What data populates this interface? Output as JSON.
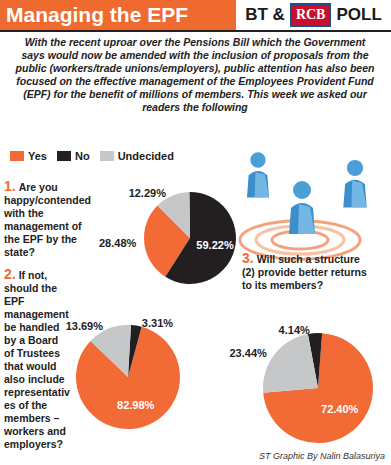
{
  "header": {
    "title": "Managing the EPF",
    "poll": [
      "BT &",
      "RCB",
      "POLL"
    ]
  },
  "intro": "With the recent uproar over the Pensions Bill which the Government says would now be amended with the inclusion of proposals from the public (workers/trade unions/employers), public attention has also been focused on the effective management of the Employees Provident Fund (EPF) for the benefit of millions of members. This week we asked our readers the following",
  "key": [
    {
      "label": "Yes",
      "color": "#f26a35"
    },
    {
      "label": "No",
      "color": "#231f20"
    },
    {
      "label": "Undecided",
      "color": "#c5c7c9"
    }
  ],
  "chart_data": [
    {
      "type": "pie",
      "number": "1.",
      "title": "Are you happy/contended with the management of the EPF by the state?",
      "categories": [
        "Yes",
        "No",
        "Undecided"
      ],
      "values": [
        28.48,
        59.22,
        12.29
      ],
      "value_labels": [
        "28.48%",
        "59.22%",
        "12.29%"
      ],
      "colors": [
        "#f26a35",
        "#231f20",
        "#c5c7c9"
      ],
      "data_labels": true
    },
    {
      "type": "pie",
      "number": "2.",
      "title": "If not, should the EPF management be handled by a Board of Trustees that would also include representatives of the members – workers and employers?",
      "categories": [
        "Yes",
        "No",
        "Undecided"
      ],
      "values": [
        82.98,
        3.31,
        13.69
      ],
      "value_labels": [
        "82.98%",
        "3.31%",
        "13.69%"
      ],
      "colors": [
        "#f26a35",
        "#231f20",
        "#c5c7c9"
      ],
      "data_labels": true
    },
    {
      "type": "pie",
      "number": "3.",
      "title": "Will such a structure (2) provide better returns to its members?",
      "categories": [
        "Yes",
        "No",
        "Undecided"
      ],
      "values": [
        72.4,
        4.14,
        23.44
      ],
      "value_labels": [
        "72.40%",
        "4.14%",
        "23.44%"
      ],
      "colors": [
        "#f26a35",
        "#231f20",
        "#c5c7c9"
      ],
      "data_labels": true
    }
  ],
  "credit": "ST Graphic By Nalin Balasuriya"
}
